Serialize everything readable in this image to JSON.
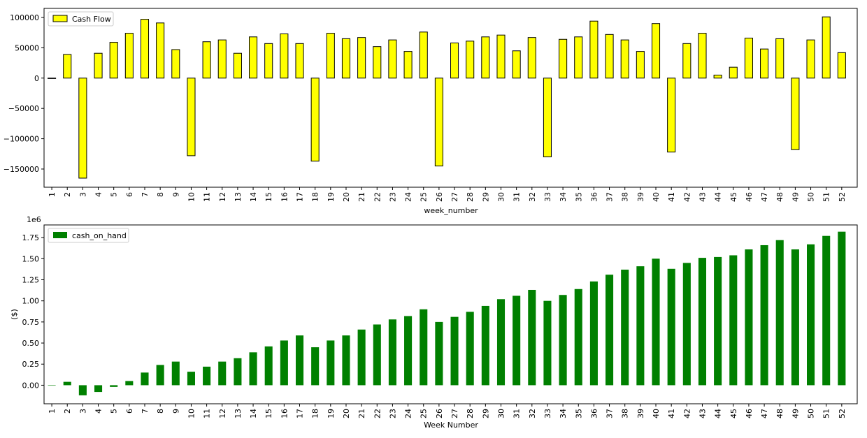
{
  "chart_data": [
    {
      "type": "bar",
      "categories": [
        "1",
        "2",
        "3",
        "4",
        "5",
        "6",
        "7",
        "8",
        "9",
        "10",
        "11",
        "12",
        "13",
        "14",
        "15",
        "16",
        "17",
        "18",
        "19",
        "20",
        "21",
        "22",
        "23",
        "24",
        "25",
        "26",
        "27",
        "28",
        "29",
        "30",
        "31",
        "32",
        "33",
        "34",
        "35",
        "36",
        "37",
        "38",
        "39",
        "40",
        "41",
        "42",
        "43",
        "44",
        "45",
        "46",
        "47",
        "48",
        "49",
        "50",
        "51",
        "52"
      ],
      "series": [
        {
          "name": "Cash Flow",
          "color": "#ffff00",
          "edgecolor": "#000000",
          "values": [
            0,
            39000,
            -165000,
            41000,
            59000,
            74000,
            97000,
            91000,
            47000,
            -128000,
            60000,
            63000,
            41000,
            68000,
            57000,
            73000,
            57000,
            -137000,
            74000,
            65000,
            67000,
            52000,
            63000,
            44000,
            76000,
            -145000,
            58000,
            61000,
            68000,
            71000,
            45000,
            67000,
            -130000,
            64000,
            68000,
            94000,
            72000,
            63000,
            44000,
            90000,
            -122000,
            57000,
            74000,
            5000,
            18000,
            66000,
            48000,
            65000,
            -118000,
            63000,
            101000,
            42000
          ]
        }
      ],
      "xlabel": "week_number",
      "ylabel": "",
      "ylim": [
        -180000,
        115000
      ],
      "yticks": [
        100000,
        50000,
        0,
        -50000,
        -100000,
        -150000
      ],
      "ytick_labels": [
        "100000",
        "50000",
        "0",
        "−50000",
        "−100000",
        "−150000"
      ],
      "legend": "top-left",
      "grid": false
    },
    {
      "type": "bar",
      "categories": [
        "1",
        "2",
        "3",
        "4",
        "5",
        "6",
        "7",
        "8",
        "9",
        "10",
        "11",
        "12",
        "13",
        "14",
        "15",
        "16",
        "17",
        "18",
        "19",
        "20",
        "21",
        "22",
        "23",
        "24",
        "25",
        "26",
        "27",
        "28",
        "29",
        "30",
        "31",
        "32",
        "33",
        "34",
        "35",
        "36",
        "37",
        "38",
        "39",
        "40",
        "41",
        "42",
        "43",
        "44",
        "45",
        "46",
        "47",
        "48",
        "49",
        "50",
        "51",
        "52"
      ],
      "series": [
        {
          "name": "cash_on_hand",
          "color": "#008000",
          "values": [
            0,
            0.04,
            -0.12,
            -0.08,
            -0.02,
            0.05,
            0.15,
            0.24,
            0.28,
            0.16,
            0.22,
            0.28,
            0.32,
            0.39,
            0.46,
            0.53,
            0.59,
            0.45,
            0.53,
            0.59,
            0.66,
            0.72,
            0.78,
            0.82,
            0.9,
            0.75,
            0.81,
            0.87,
            0.94,
            1.02,
            1.06,
            1.13,
            1.0,
            1.07,
            1.14,
            1.23,
            1.31,
            1.37,
            1.41,
            1.5,
            1.38,
            1.45,
            1.51,
            1.52,
            1.54,
            1.61,
            1.66,
            1.72,
            1.61,
            1.67,
            1.77,
            1.82
          ]
        }
      ],
      "xlabel": "Week Number",
      "ylabel": "($)",
      "offset_label": "1e6",
      "ylim": [
        -0.22,
        1.9
      ],
      "yticks": [
        1.75,
        1.5,
        1.25,
        1.0,
        0.75,
        0.5,
        0.25,
        0.0
      ],
      "ytick_labels": [
        "1.75",
        "1.50",
        "1.25",
        "1.00",
        "0.75",
        "0.50",
        "0.25",
        "0.00"
      ],
      "legend": "top-left",
      "grid": false
    }
  ]
}
